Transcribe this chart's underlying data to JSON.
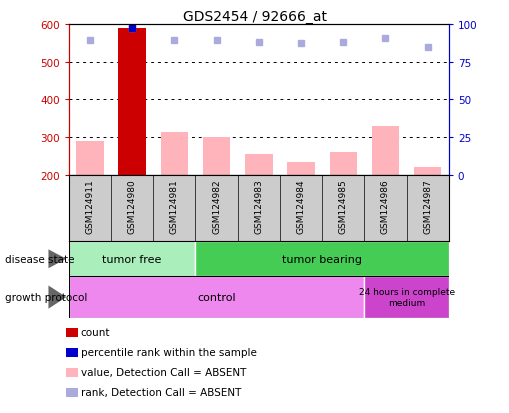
{
  "title": "GDS2454 / 92666_at",
  "samples": [
    "GSM124911",
    "GSM124980",
    "GSM124981",
    "GSM124982",
    "GSM124983",
    "GSM124984",
    "GSM124985",
    "GSM124986",
    "GSM124987"
  ],
  "values": [
    290,
    590,
    315,
    300,
    255,
    235,
    260,
    330,
    220
  ],
  "rank_values": [
    558,
    590,
    558,
    558,
    551,
    549,
    551,
    563,
    540
  ],
  "ylim_left": [
    200,
    600
  ],
  "ylim_right": [
    0,
    100
  ],
  "y_ticks_left": [
    200,
    300,
    400,
    500,
    600
  ],
  "y_ticks_right": [
    0,
    25,
    50,
    75,
    100
  ],
  "bar_color_main": "#cc0000",
  "bar_color_value": "#ffb3ba",
  "rank_dot_color": "#aaaadd",
  "count_dot_color": "#0000cc",
  "left_axis_color": "#cc0000",
  "right_axis_color": "#0000cc",
  "tumor_free_color": "#aaeebb",
  "tumor_bearing_color": "#44cc55",
  "control_color": "#ee88ee",
  "hours_color": "#cc44cc",
  "label_bg_color": "#cccccc",
  "legend_items": [
    {
      "color": "#cc0000",
      "label": "count"
    },
    {
      "color": "#0000cc",
      "label": "percentile rank within the sample"
    },
    {
      "color": "#ffb3ba",
      "label": "value, Detection Call = ABSENT"
    },
    {
      "color": "#aaaadd",
      "label": "rank, Detection Call = ABSENT"
    }
  ]
}
